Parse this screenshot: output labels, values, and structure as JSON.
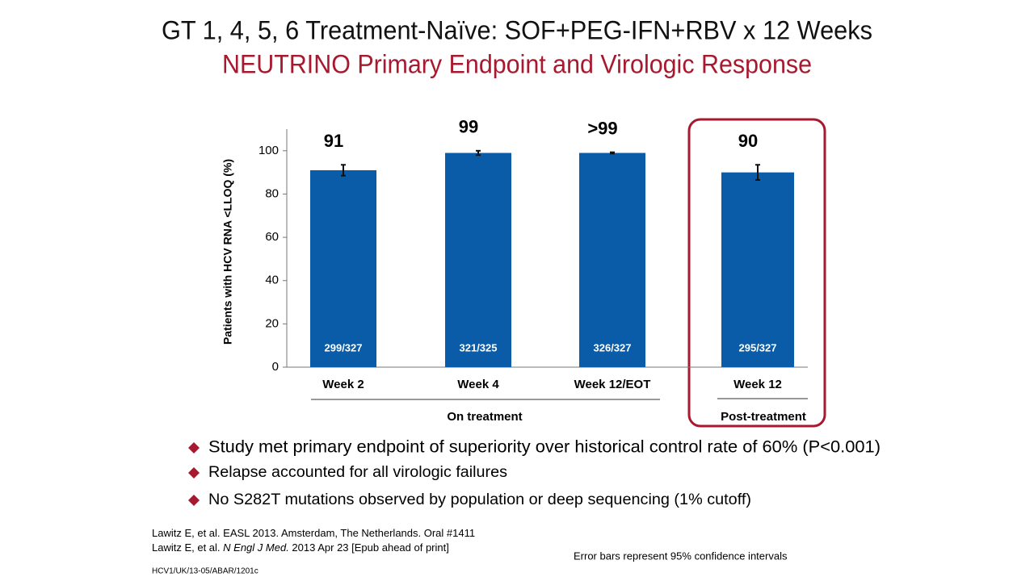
{
  "title": "GT 1, 4, 5, 6 Treatment-Naïve: SOF+PEG-IFN+RBV x 12 Weeks",
  "subtitle": "NEUTRINO Primary Endpoint and Virologic Response",
  "chart_data": {
    "type": "bar",
    "y_label": "Patients with HCV RNA <LLOQ (%)",
    "categories": [
      "Week 2",
      "Week 4",
      "Week 12/EOT",
      "Week 12"
    ],
    "values": [
      91,
      99,
      99,
      90
    ],
    "value_labels": [
      "91",
      "99",
      ">99",
      "90"
    ],
    "errors": [
      2.5,
      1,
      0.3,
      3.5
    ],
    "fractions": [
      "299/327",
      "321/325",
      "326/327",
      "295/327"
    ],
    "groups": [
      "On treatment",
      "Post-treatment"
    ],
    "color": "#0a5ca8",
    "ylim": [
      0,
      110
    ],
    "yticks": [
      0,
      20,
      40,
      60,
      80,
      100
    ],
    "grid": false
  },
  "bullets": [
    "Study met primary endpoint of superiority over historical control rate of 60% (P<0.001)",
    "Relapse accounted for all virologic failures",
    "No S282T mutations observed by population or deep sequencing (1% cutoff)"
  ],
  "references": [
    [
      "Lawitz E, et al. EASL 2013. Amsterdam, The Netherlands.  Oral #1411"
    ],
    [
      "Lawitz E, et al. ",
      "N Engl J Med.",
      " 2013 Apr 23 [Epub ahead of print]"
    ]
  ],
  "footnote": "Error bars represent 95% confidence intervals",
  "code": "HCV1/UK/13-05/ABAR/1201c"
}
